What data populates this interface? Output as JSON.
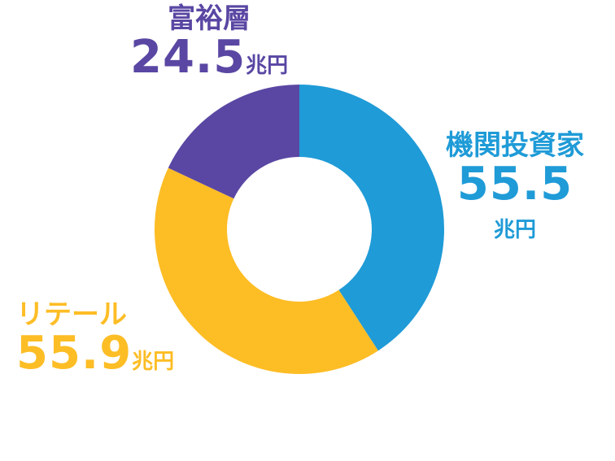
{
  "chart_data": {
    "type": "pie",
    "categories": [
      "機関投資家",
      "リテール",
      "富裕層"
    ],
    "values": [
      55.5,
      55.9,
      24.5
    ],
    "unit": "兆円",
    "value_labels": [
      "55.5",
      "55.9",
      "24.5"
    ],
    "colors": [
      "#1f9bd7",
      "#fdbd25",
      "#5a47a3"
    ],
    "donut": true
  }
}
